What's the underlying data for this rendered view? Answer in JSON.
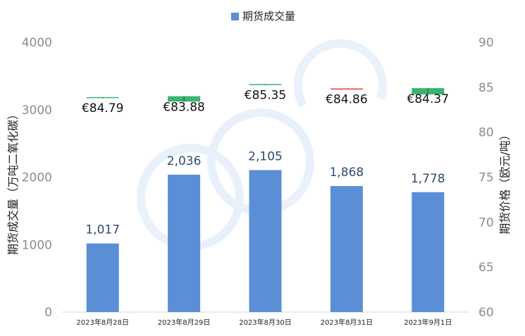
{
  "chart_data": {
    "type": "bar",
    "categories": [
      "2023年8月28日",
      "2023年8月29日",
      "2023年8月30日",
      "2023年8月31日",
      "2023年9月1日"
    ],
    "series": [
      {
        "name": "期货成交量",
        "values": [
          1017,
          2036,
          2105,
          1868,
          1778
        ],
        "labels": [
          "1,017",
          "2,036",
          "2,105",
          "1,868",
          "1,778"
        ],
        "color": "#5a8fd6"
      }
    ],
    "price_series": {
      "prices": [
        84.79,
        83.88,
        85.35,
        84.86,
        84.37
      ],
      "labels": [
        "€84.79",
        "€83.88",
        "€85.35",
        "€84.86",
        "€84.37"
      ],
      "ohlc": [
        {
          "open": 83.8,
          "close": 83.9,
          "high": 83.9,
          "low": 83.8,
          "color": "#3cb371"
        },
        {
          "open": 83.4,
          "close": 84.0,
          "high": 84.0,
          "low": 83.4,
          "color": "#3cb371"
        },
        {
          "open": 85.35,
          "close": 85.35,
          "high": 85.35,
          "low": 85.35,
          "color": "#3cb371"
        },
        {
          "open": 84.86,
          "close": 84.86,
          "high": 84.86,
          "low": 84.86,
          "color": "#e53935"
        },
        {
          "open": 84.2,
          "close": 84.9,
          "high": 84.9,
          "low": 84.2,
          "color": "#3cb371"
        }
      ]
    },
    "ylabel": "期货成交量（万吨二氧化碳）",
    "y2label": "期货价格（欧元/吨）",
    "ylim": [
      0,
      4000
    ],
    "yticks": [
      0,
      1000,
      2000,
      3000,
      4000
    ],
    "ytick_labels": [
      "0",
      "1000",
      "2000",
      "3000",
      "4000"
    ],
    "y2lim": [
      60,
      90
    ],
    "y2ticks": [
      60,
      65,
      70,
      75,
      80,
      85,
      90
    ],
    "y2tick_labels": [
      "60",
      "65",
      "70",
      "75",
      "80",
      "85",
      "90"
    ],
    "legend": "top-center",
    "grid": false
  }
}
